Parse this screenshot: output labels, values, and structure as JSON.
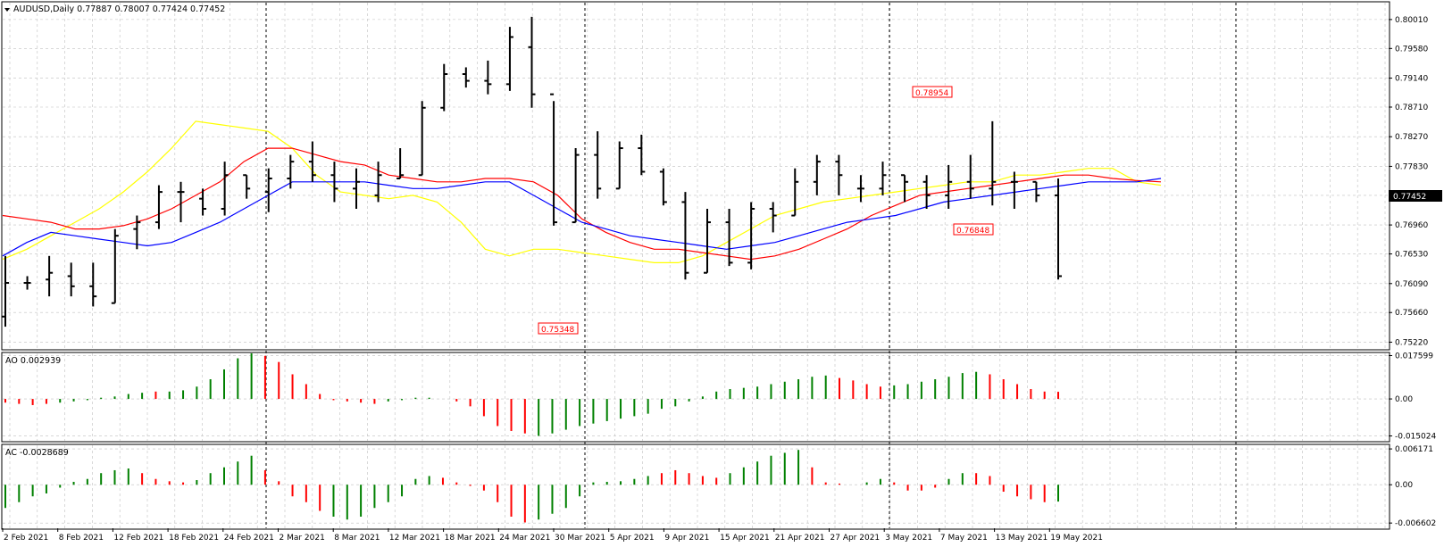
{
  "symbol_header": {
    "text": "AUDUSD,Daily  0.77887 0.78007 0.77424 0.77452"
  },
  "ao_header": {
    "text": "AO 0.002939"
  },
  "ac_header": {
    "text": "AC -0.0028689"
  },
  "colors": {
    "bar": "#000000",
    "grid": "#c0c0c0",
    "ma_fast": "#ffff00",
    "ma_mid": "#ff0000",
    "ma_slow": "#0000ff",
    "up": "#008000",
    "down": "#ff0000",
    "price_tag_bg": "#000000"
  },
  "chart_data": [
    {
      "type": "ohlc",
      "title": "AUDUSD,Daily",
      "last_values": {
        "open": 0.77887,
        "high": 0.78007,
        "low": 0.77424,
        "close": 0.77452
      },
      "current_price_label": "0.77452",
      "y_ticks": [
        "0.80010",
        "0.79580",
        "0.79140",
        "0.78710",
        "0.78270",
        "0.77830",
        "0.77400",
        "0.76960",
        "0.76530",
        "0.76090",
        "0.75660",
        "0.75220"
      ],
      "ylim": [
        0.7512,
        0.8026
      ],
      "x_tick_labels": [
        "2 Feb 2021",
        "8 Feb 2021",
        "12 Feb 2021",
        "18 Feb 2021",
        "24 Feb 2021",
        "2 Mar 2021",
        "8 Mar 2021",
        "12 Mar 2021",
        "18 Mar 2021",
        "24 Mar 2021",
        "30 Mar 2021",
        "5 Apr 2021",
        "9 Apr 2021",
        "15 Apr 2021",
        "21 Apr 2021",
        "27 Apr 2021",
        "3 May 2021",
        "7 May 2021",
        "13 May 2021",
        "19 May 2021"
      ],
      "annotations": [
        {
          "text": "0.78954",
          "bar": 70
        },
        {
          "text": "0.76848",
          "bar": 74
        },
        {
          "text": "0.75348",
          "bar": 42
        }
      ],
      "bars": [
        [
          0.756,
          0.765,
          0.7545,
          0.761
        ],
        [
          0.761,
          0.762,
          0.76,
          0.761
        ],
        [
          0.7615,
          0.765,
          0.759,
          0.7625
        ],
        [
          0.762,
          0.764,
          0.759,
          0.7605
        ],
        [
          0.7605,
          0.764,
          0.7575,
          0.759
        ],
        [
          0.758,
          0.769,
          0.758,
          0.768
        ],
        [
          0.769,
          0.771,
          0.766,
          0.77
        ],
        [
          0.77,
          0.7755,
          0.769,
          0.7745
        ],
        [
          0.7745,
          0.776,
          0.77,
          0.7745
        ],
        [
          0.7735,
          0.775,
          0.771,
          0.772
        ],
        [
          0.772,
          0.779,
          0.771,
          0.777
        ],
        [
          0.777,
          0.777,
          0.7735,
          0.775
        ],
        [
          0.7745,
          0.778,
          0.7715,
          0.7765
        ],
        [
          0.7765,
          0.78,
          0.775,
          0.779
        ],
        [
          0.779,
          0.782,
          0.776,
          0.777
        ],
        [
          0.777,
          0.779,
          0.773,
          0.775
        ],
        [
          0.775,
          0.778,
          0.772,
          0.776
        ],
        [
          0.774,
          0.779,
          0.773,
          0.777
        ],
        [
          0.7765,
          0.781,
          0.7765,
          0.777
        ],
        [
          0.777,
          0.788,
          0.777,
          0.787
        ],
        [
          0.787,
          0.7935,
          0.7865,
          0.792
        ],
        [
          0.792,
          0.793,
          0.79,
          0.791
        ],
        [
          0.791,
          0.794,
          0.789,
          0.7905
        ],
        [
          0.7905,
          0.799,
          0.7895,
          0.7975
        ],
        [
          0.796,
          0.8005,
          0.787,
          0.789
        ],
        [
          0.789,
          0.788,
          0.7695,
          0.77
        ],
        [
          0.77,
          0.781,
          0.77,
          0.78
        ],
        [
          0.78,
          0.7835,
          0.7735,
          0.775
        ],
        [
          0.775,
          0.782,
          0.775,
          0.781
        ],
        [
          0.781,
          0.783,
          0.777,
          0.7775
        ],
        [
          0.7775,
          0.778,
          0.7725,
          0.773
        ],
        [
          0.773,
          0.7745,
          0.7615,
          0.7625
        ],
        [
          0.7625,
          0.772,
          0.7625,
          0.77
        ],
        [
          0.77,
          0.772,
          0.7635,
          0.764
        ],
        [
          0.764,
          0.773,
          0.763,
          0.772
        ],
        [
          0.772,
          0.773,
          0.7685,
          0.771
        ],
        [
          0.771,
          0.778,
          0.771,
          0.776
        ],
        [
          0.776,
          0.78,
          0.774,
          0.779
        ],
        [
          0.779,
          0.78,
          0.774,
          0.777
        ],
        [
          0.775,
          0.777,
          0.773,
          0.775
        ],
        [
          0.775,
          0.779,
          0.774,
          0.777
        ],
        [
          0.777,
          0.777,
          0.773,
          0.776
        ],
        [
          0.776,
          0.777,
          0.772,
          0.774
        ],
        [
          0.774,
          0.7785,
          0.772,
          0.776
        ],
        [
          0.776,
          0.78,
          0.7735,
          0.775
        ],
        [
          0.775,
          0.785,
          0.7725,
          0.776
        ],
        [
          0.776,
          0.7775,
          0.772,
          0.776
        ],
        [
          0.776,
          0.776,
          0.773,
          0.774
        ],
        [
          0.774,
          0.7765,
          0.7615,
          0.762
        ]
      ],
      "ma_fast_y": [
        0.7645,
        0.766,
        0.768,
        0.77,
        0.772,
        0.7745,
        0.7775,
        0.781,
        0.785,
        0.7845,
        0.784,
        0.7835,
        0.781,
        0.777,
        0.7745,
        0.774,
        0.7735,
        0.774,
        0.773,
        0.77,
        0.766,
        0.765,
        0.766,
        0.766,
        0.7655,
        0.765,
        0.7645,
        0.764,
        0.764,
        0.765,
        0.767,
        0.769,
        0.771,
        0.772,
        0.773,
        0.7735,
        0.774,
        0.7745,
        0.775,
        0.7755,
        0.776,
        0.776,
        0.777,
        0.777,
        0.7775,
        0.778,
        0.778,
        0.776,
        0.7755
      ],
      "ma_mid_y": [
        0.771,
        0.7705,
        0.77,
        0.769,
        0.769,
        0.7695,
        0.7705,
        0.772,
        0.774,
        0.776,
        0.779,
        0.781,
        0.781,
        0.78,
        0.779,
        0.7785,
        0.777,
        0.7765,
        0.776,
        0.776,
        0.7765,
        0.7765,
        0.776,
        0.774,
        0.7705,
        0.7685,
        0.767,
        0.766,
        0.766,
        0.7655,
        0.765,
        0.7645,
        0.765,
        0.766,
        0.7675,
        0.769,
        0.771,
        0.7725,
        0.774,
        0.7745,
        0.775,
        0.7755,
        0.776,
        0.7765,
        0.777,
        0.777,
        0.7765,
        0.7762,
        0.776
      ],
      "ma_slow_y": [
        0.765,
        0.767,
        0.7685,
        0.768,
        0.7675,
        0.767,
        0.7665,
        0.767,
        0.7685,
        0.77,
        0.772,
        0.774,
        0.776,
        0.776,
        0.776,
        0.776,
        0.7755,
        0.775,
        0.775,
        0.7755,
        0.776,
        0.776,
        0.774,
        0.772,
        0.77,
        0.769,
        0.768,
        0.7675,
        0.767,
        0.7665,
        0.766,
        0.7665,
        0.767,
        0.768,
        0.769,
        0.77,
        0.7705,
        0.771,
        0.772,
        0.773,
        0.7735,
        0.774,
        0.7745,
        0.775,
        0.7755,
        0.776,
        0.776,
        0.776,
        0.7765
      ]
    },
    {
      "type": "histogram",
      "title": "AO 0.002939",
      "y_ticks": [
        "0.017599",
        "0.00",
        "-0.015024"
      ],
      "ylim": [
        -0.017,
        0.0185
      ],
      "values": [
        -0.0015,
        -0.002,
        -0.0025,
        -0.002,
        -0.0015,
        -0.001,
        -0.0005,
        0.0005,
        0.001,
        0.002,
        0.0025,
        0.003,
        0.003,
        0.0035,
        0.005,
        0.008,
        0.012,
        0.0165,
        0.0185,
        0.0175,
        0.015,
        0.01,
        0.006,
        0.002,
        -0.0005,
        -0.001,
        -0.0015,
        -0.002,
        -0.001,
        -0.0005,
        0.0005,
        0.0005,
        0.0,
        -0.001,
        -0.003,
        -0.007,
        -0.011,
        -0.013,
        -0.014,
        -0.015,
        -0.014,
        -0.0125,
        -0.011,
        -0.01,
        -0.009,
        -0.008,
        -0.007,
        -0.006,
        -0.004,
        -0.003,
        -0.001,
        0.001,
        0.003,
        0.004,
        0.0045,
        0.005,
        0.006,
        0.007,
        0.008,
        0.009,
        0.0095,
        0.0085,
        0.0075,
        0.006,
        0.005,
        0.0055,
        0.006,
        0.007,
        0.008,
        0.009,
        0.0105,
        0.011,
        0.01,
        0.008,
        0.006,
        0.004,
        0.003,
        0.0029
      ],
      "colors": [
        "down",
        "down",
        "down",
        "down",
        "up",
        "up",
        "up",
        "up",
        "up",
        "up",
        "up",
        "down",
        "up",
        "up",
        "up",
        "up",
        "up",
        "up",
        "up",
        "down",
        "down",
        "down",
        "down",
        "down",
        "down",
        "down",
        "down",
        "down",
        "up",
        "up",
        "up",
        "up",
        "down",
        "down",
        "down",
        "down",
        "down",
        "down",
        "down",
        "up",
        "up",
        "up",
        "up",
        "up",
        "up",
        "up",
        "up",
        "up",
        "up",
        "up",
        "up",
        "up",
        "up",
        "up",
        "up",
        "up",
        "up",
        "up",
        "up",
        "up",
        "up",
        "down",
        "down",
        "down",
        "down",
        "up",
        "up",
        "up",
        "up",
        "up",
        "up",
        "up",
        "down",
        "down",
        "down",
        "down",
        "down",
        "down"
      ]
    },
    {
      "type": "histogram",
      "title": "AC -0.0028689",
      "y_ticks": [
        "0.006171",
        "0.00",
        "-0.006602"
      ],
      "ylim": [
        -0.0075,
        0.0068
      ],
      "values": [
        -0.004,
        -0.003,
        -0.002,
        -0.0015,
        -0.0005,
        0.0005,
        0.001,
        0.002,
        0.0025,
        0.0028,
        0.002,
        0.001,
        0.0006,
        0.0004,
        0.0008,
        0.002,
        0.003,
        0.004,
        0.005,
        0.0025,
        0.0006,
        -0.002,
        -0.003,
        -0.0045,
        -0.0055,
        -0.006,
        -0.0055,
        -0.004,
        -0.003,
        -0.002,
        0.001,
        0.0015,
        0.0012,
        0.0004,
        -0.0002,
        -0.001,
        -0.003,
        -0.0055,
        -0.0065,
        -0.006,
        -0.005,
        -0.004,
        -0.002,
        0.0004,
        0.0005,
        0.0006,
        0.001,
        0.0015,
        0.002,
        0.0025,
        0.002,
        0.0015,
        0.0012,
        0.002,
        0.003,
        0.004,
        0.005,
        0.0055,
        0.006,
        0.003,
        0.0004,
        0.0002,
        0.0,
        0.0004,
        0.001,
        0.0004,
        -0.001,
        -0.001,
        -0.0005,
        0.001,
        0.002,
        0.002,
        0.0015,
        -0.0012,
        -0.002,
        -0.0025,
        -0.003,
        -0.0029
      ],
      "colors": [
        "up",
        "up",
        "up",
        "up",
        "up",
        "up",
        "up",
        "up",
        "up",
        "up",
        "down",
        "down",
        "down",
        "down",
        "up",
        "up",
        "up",
        "up",
        "up",
        "down",
        "down",
        "down",
        "down",
        "down",
        "up",
        "up",
        "up",
        "up",
        "up",
        "up",
        "up",
        "up",
        "down",
        "down",
        "down",
        "down",
        "down",
        "down",
        "down",
        "up",
        "up",
        "up",
        "up",
        "up",
        "up",
        "up",
        "up",
        "up",
        "down",
        "down",
        "down",
        "down",
        "down",
        "up",
        "up",
        "up",
        "up",
        "up",
        "up",
        "down",
        "down",
        "down",
        "down",
        "up",
        "up",
        "down",
        "down",
        "down",
        "down",
        "up",
        "up",
        "down",
        "down",
        "down",
        "down",
        "down",
        "down",
        "up"
      ]
    }
  ]
}
